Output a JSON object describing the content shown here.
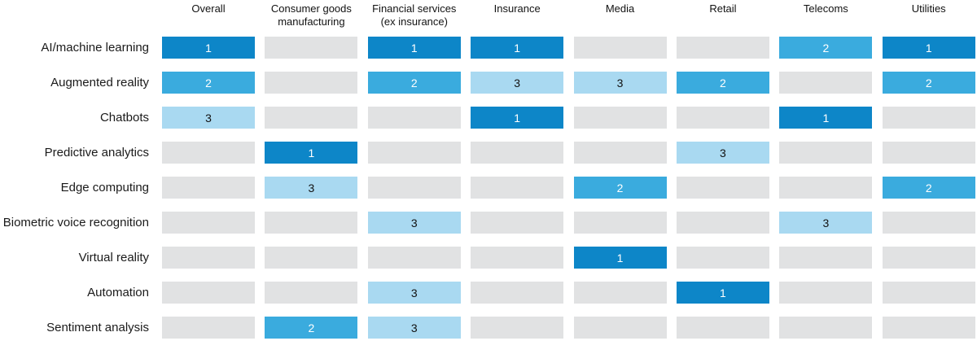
{
  "chart_data": {
    "type": "heatmap",
    "description": "Top-3 technology rankings by industry; cells show rank 1-3, blank cells unranked",
    "columns": [
      "Overall",
      "Consumer goods\nmanufacturing",
      "Financial services\n(ex insurance)",
      "Insurance",
      "Media",
      "Retail",
      "Telecoms",
      "Utilities"
    ],
    "rows": [
      "AI/machine learning",
      "Augmented reality",
      "Chatbots",
      "Predictive analytics",
      "Edge computing",
      "Biometric voice recognition",
      "Virtual reality",
      "Automation",
      "Sentiment analysis"
    ],
    "values": [
      [
        1,
        null,
        1,
        1,
        null,
        null,
        2,
        1
      ],
      [
        2,
        null,
        2,
        3,
        3,
        2,
        null,
        2
      ],
      [
        3,
        null,
        null,
        1,
        null,
        null,
        1,
        null
      ],
      [
        null,
        1,
        null,
        null,
        null,
        3,
        null,
        null
      ],
      [
        null,
        3,
        null,
        null,
        2,
        null,
        null,
        2
      ],
      [
        null,
        null,
        3,
        null,
        null,
        null,
        3,
        null
      ],
      [
        null,
        null,
        null,
        null,
        1,
        null,
        null,
        null
      ],
      [
        null,
        null,
        3,
        null,
        null,
        1,
        null,
        null
      ],
      [
        null,
        2,
        3,
        null,
        null,
        null,
        null,
        null
      ]
    ],
    "value_colors": {
      "1": "#0d86c8",
      "2": "#3aabde",
      "3": "#a9d9f1",
      "empty": "#e1e2e3"
    },
    "value_text_colors": {
      "1": "#ffffff",
      "2": "#ffffff",
      "3": "#121212"
    },
    "header_text_color": "#121212",
    "row_label_color": "#1a1a1a",
    "grid": false,
    "legend": null,
    "title": ""
  }
}
